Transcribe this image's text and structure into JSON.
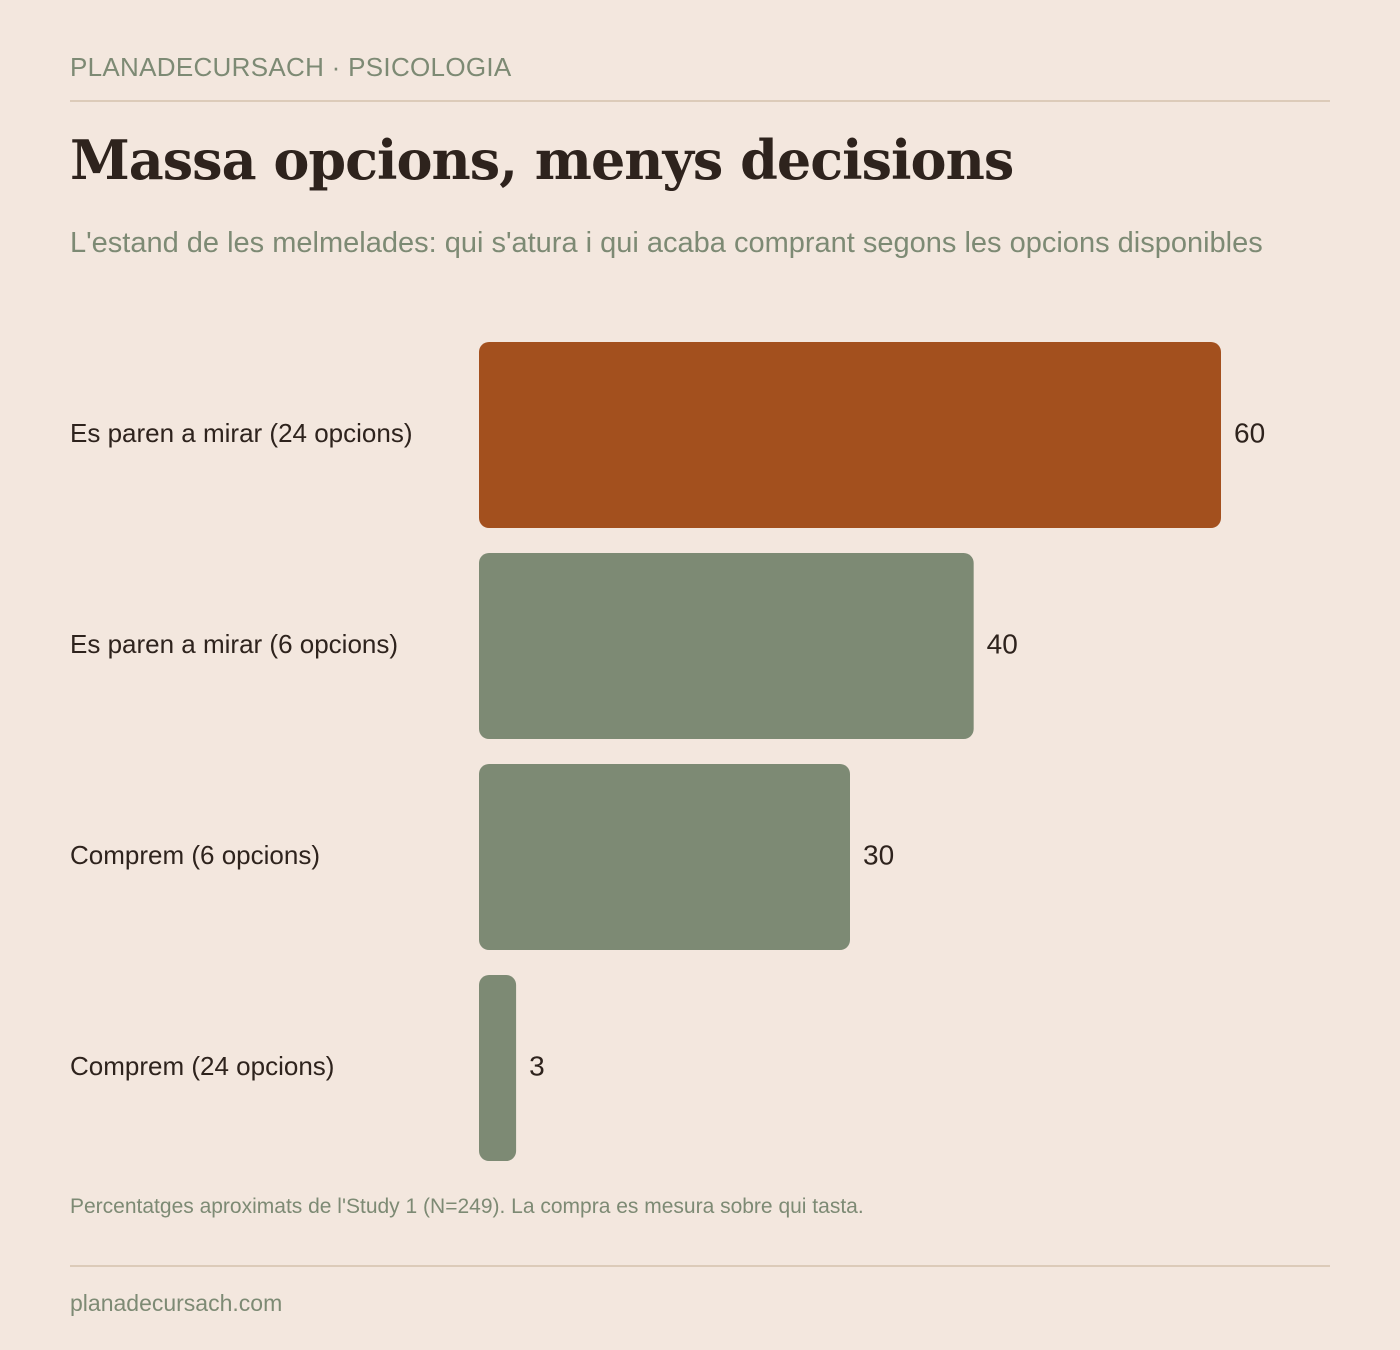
{
  "header": {
    "kicker": "PLANADECURSACH · PSICOLOGIA",
    "title": "Massa opcions, menys decisions",
    "subtitle": "L'estand de les melmelades: qui s'atura i qui acaba comprant segons les opcions disponibles"
  },
  "chart_data": {
    "type": "bar",
    "orientation": "horizontal",
    "categories": [
      "Es paren a mirar (24 opcions)",
      "Es paren a mirar (6 opcions)",
      "Comprem (6 opcions)",
      "Comprem (24 opcions)"
    ],
    "values": [
      60,
      40,
      30,
      3
    ],
    "value_labels": [
      "60",
      "40",
      "30",
      "3"
    ],
    "highlight_index": 0,
    "colors": {
      "highlight": "#a3501e",
      "default": "#7d8a74"
    },
    "xlim": [
      0,
      60
    ],
    "grid": false,
    "legend": "none"
  },
  "note": "Percentatges aproximats de l'Study 1 (N=249). La compra es mesura sobre qui tasta.",
  "footer": {
    "site": "planadecursach.com"
  }
}
